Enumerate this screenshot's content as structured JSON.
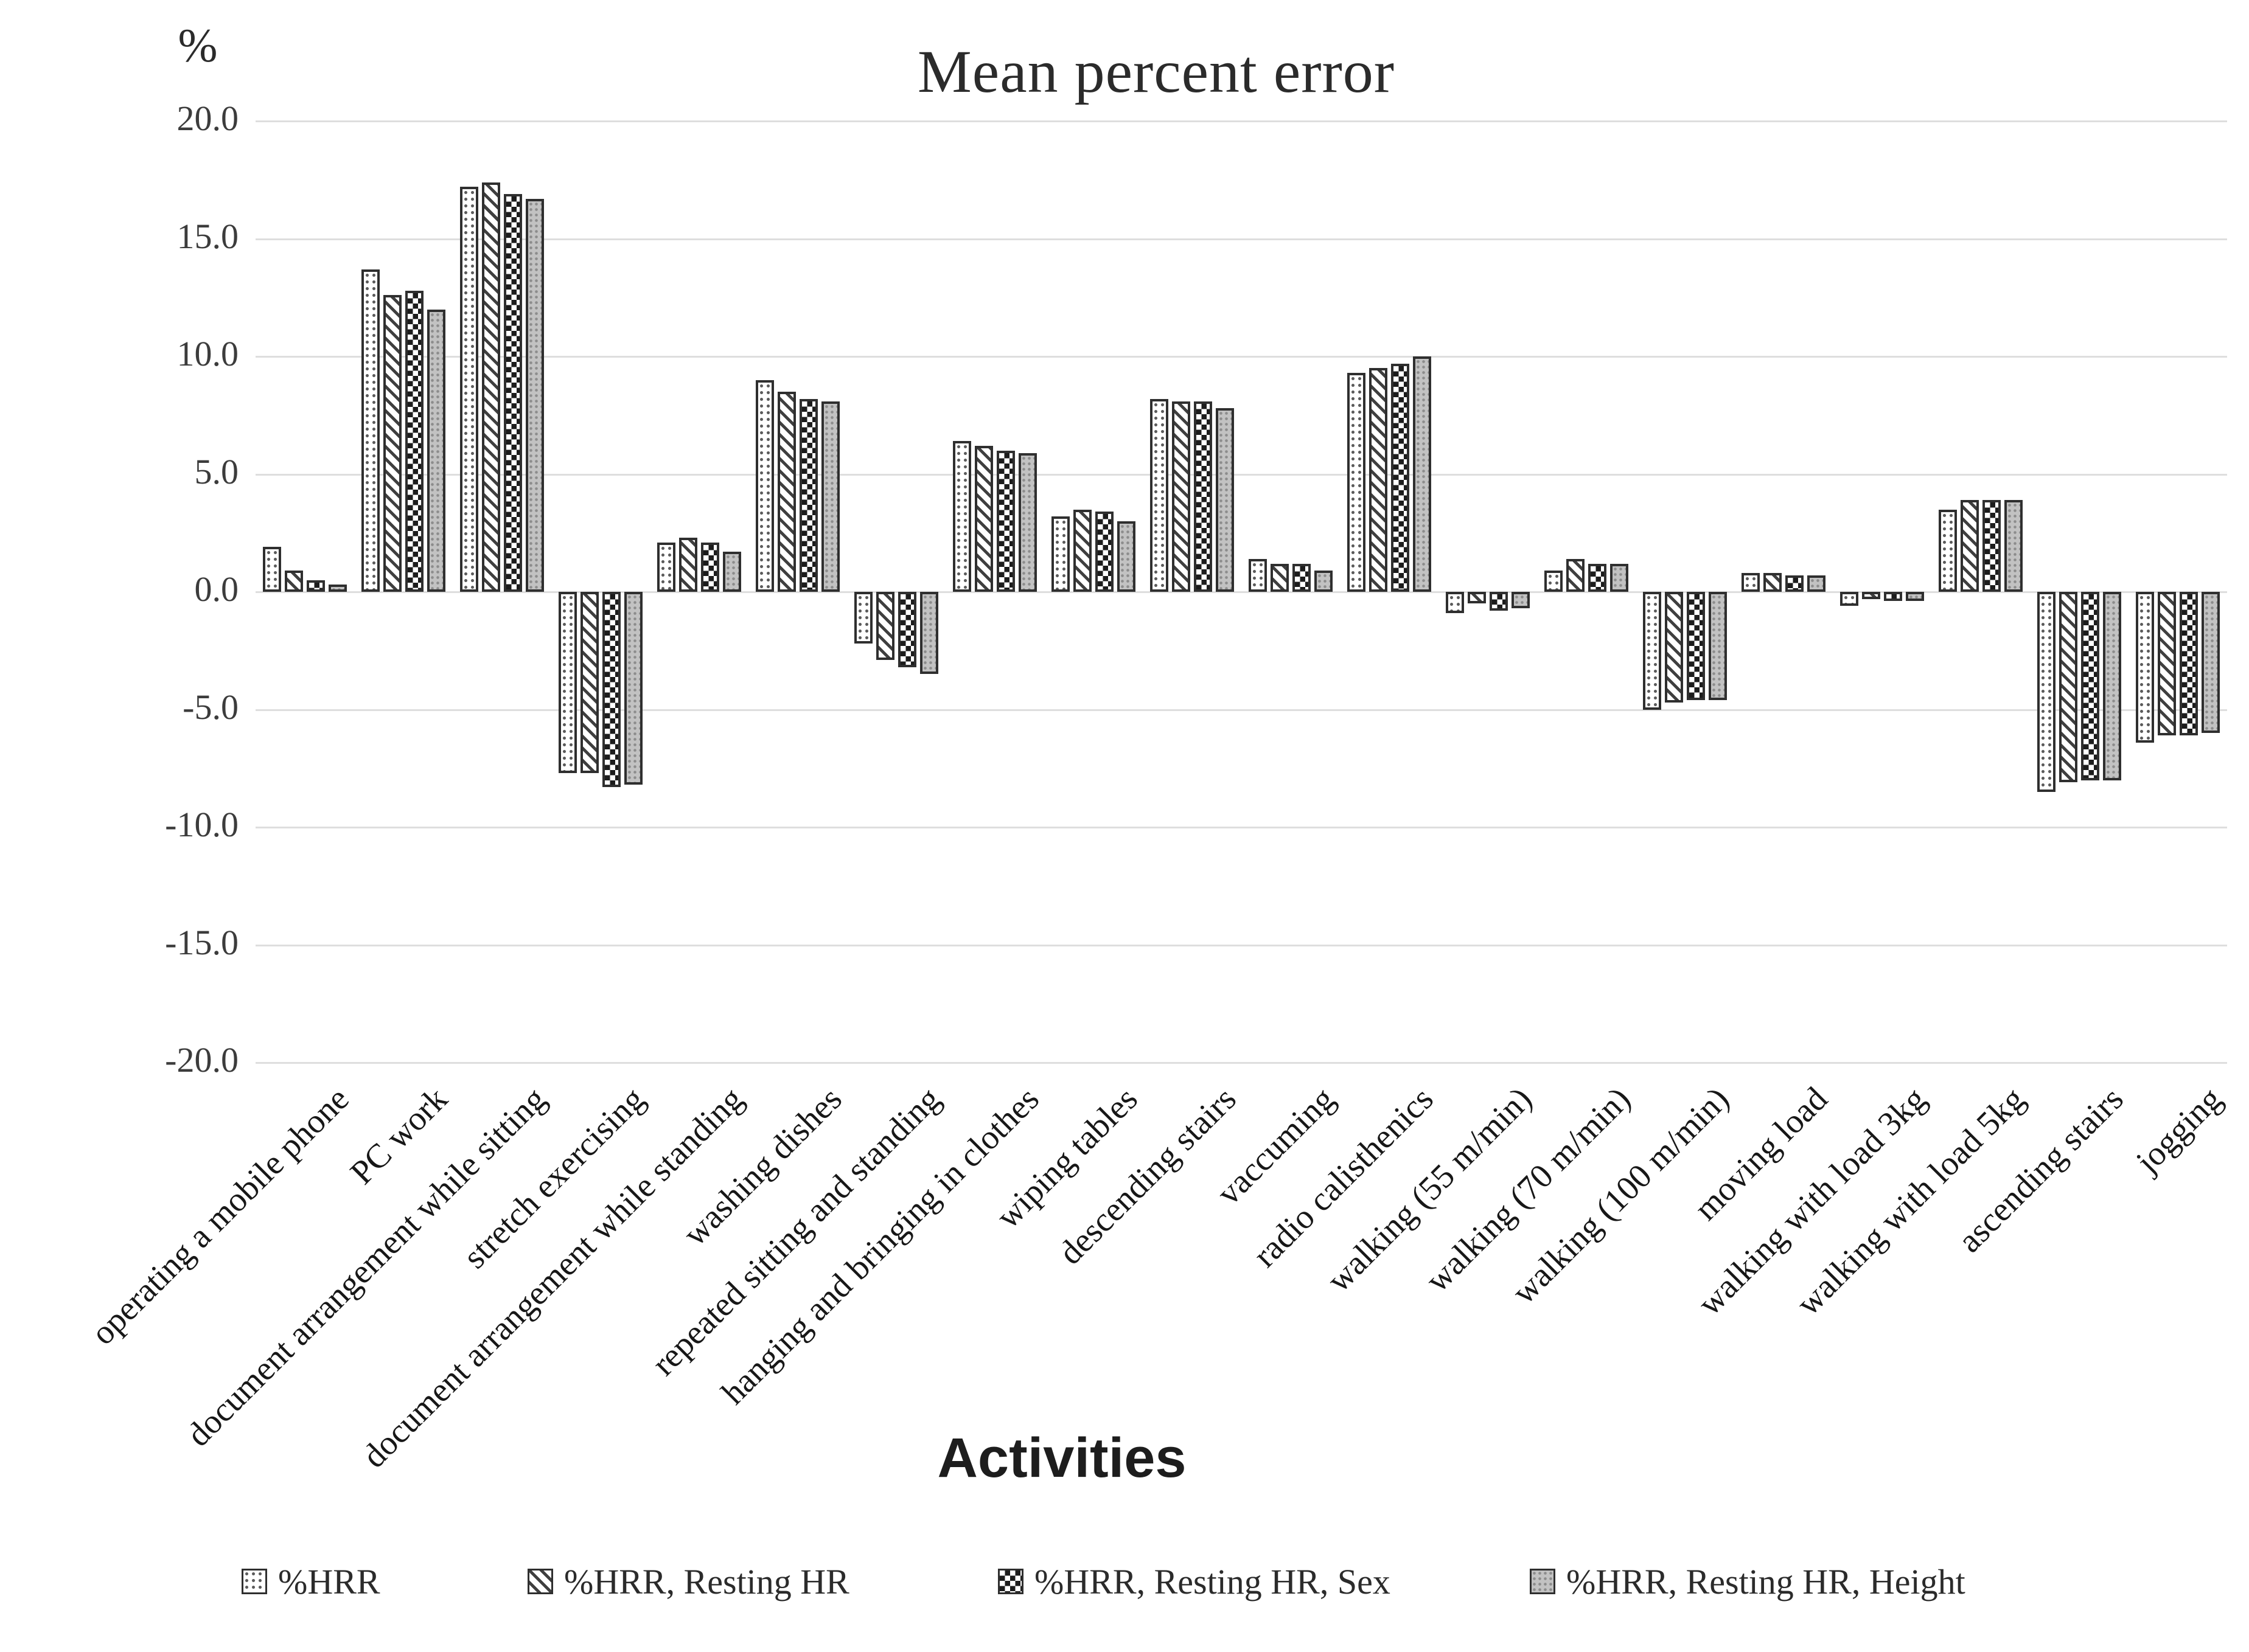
{
  "chart": {
    "title": "Mean percent error",
    "y_axis_unit": "%",
    "x_axis_title": "Activities"
  },
  "chart_data": {
    "type": "bar",
    "title": "Mean percent error",
    "xlabel": "Activities",
    "ylabel": "%",
    "ylim": [
      -20,
      20
    ],
    "ytick_step": 5,
    "ytick_labels": [
      "20.0",
      "15.0",
      "10.0",
      "5.0",
      "0.0",
      "-5.0",
      "-10.0",
      "-15.0",
      "-20.0"
    ],
    "grid": true,
    "legend_position": "bottom",
    "categories": [
      "operating a mobile phone",
      "PC work",
      "document arrangement while sitting",
      "stretch exercising",
      "document arrangement while standing",
      "washing dishes",
      "repeated sitting and standing",
      "hanging and bringing in clothes",
      "wiping tables",
      "descending stairs",
      "vaccuming",
      "radio calisthenics",
      "walking (55 m/min)",
      "walking (70 m/min)",
      "walking (100 m/min)",
      "moving load",
      "walking with load 3kg",
      "walking with load 5kg",
      "ascending stairs",
      "jogging"
    ],
    "series": [
      {
        "name": "%HRR",
        "pattern": "dots-light",
        "values": [
          1.9,
          13.7,
          17.2,
          -7.7,
          2.1,
          9.0,
          -2.2,
          6.4,
          3.2,
          8.2,
          1.4,
          9.3,
          -0.9,
          0.9,
          -5.0,
          0.8,
          -0.6,
          3.5,
          -8.5,
          -6.4
        ]
      },
      {
        "name": "%HRR, Resting HR",
        "pattern": "diagonal-hatch",
        "values": [
          0.9,
          12.6,
          17.4,
          -7.7,
          2.3,
          8.5,
          -2.9,
          6.2,
          3.5,
          8.1,
          1.2,
          9.5,
          -0.5,
          1.4,
          -4.7,
          0.8,
          -0.3,
          3.9,
          -8.1,
          -6.1
        ]
      },
      {
        "name": "%HRR, Resting HR, Sex",
        "pattern": "checkerboard",
        "values": [
          0.5,
          12.8,
          16.9,
          -8.3,
          2.1,
          8.2,
          -3.2,
          6.0,
          3.4,
          8.1,
          1.2,
          9.7,
          -0.8,
          1.2,
          -4.6,
          0.7,
          -0.4,
          3.9,
          -8.0,
          -6.1
        ]
      },
      {
        "name": "%HRR, Resting HR, Height",
        "pattern": "gray-dots",
        "values": [
          0.3,
          12.0,
          16.7,
          -8.2,
          1.7,
          8.1,
          -3.5,
          5.9,
          3.0,
          7.8,
          0.9,
          10.0,
          -0.7,
          1.2,
          -4.6,
          0.7,
          -0.4,
          3.9,
          -8.0,
          -6.0
        ]
      }
    ],
    "colors": {
      "gridline": "#dedede",
      "bar_outline": "#2f2f2f",
      "text": "#2b2b2b"
    }
  }
}
